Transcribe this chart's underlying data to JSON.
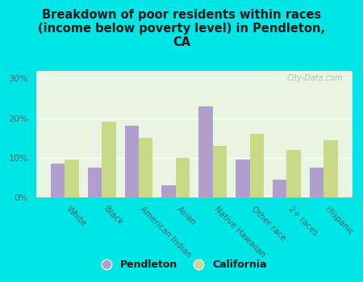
{
  "title": "Breakdown of poor residents within races\n(income below poverty level) in Pendleton,\nCA",
  "categories": [
    "White",
    "Black",
    "American Indian",
    "Asian",
    "Native Hawaiian",
    "Other race",
    "2+ races",
    "Hispanic"
  ],
  "pendleton": [
    8.5,
    7.5,
    18.0,
    3.0,
    23.0,
    9.5,
    4.5,
    7.5
  ],
  "california": [
    9.5,
    19.0,
    15.0,
    10.0,
    13.0,
    16.0,
    12.0,
    14.5
  ],
  "pendleton_color": "#b09fcc",
  "california_color": "#c8d988",
  "background_color": "#00e5e5",
  "plot_bg": "#e8f5e0",
  "ylim": [
    0,
    32
  ],
  "yticks": [
    0,
    10,
    20,
    30
  ],
  "ytick_labels": [
    "0%",
    "10%",
    "20%",
    "30%"
  ],
  "watermark": "City-Data.com",
  "legend_pendleton": "Pendleton",
  "legend_california": "California",
  "bar_width": 0.38
}
